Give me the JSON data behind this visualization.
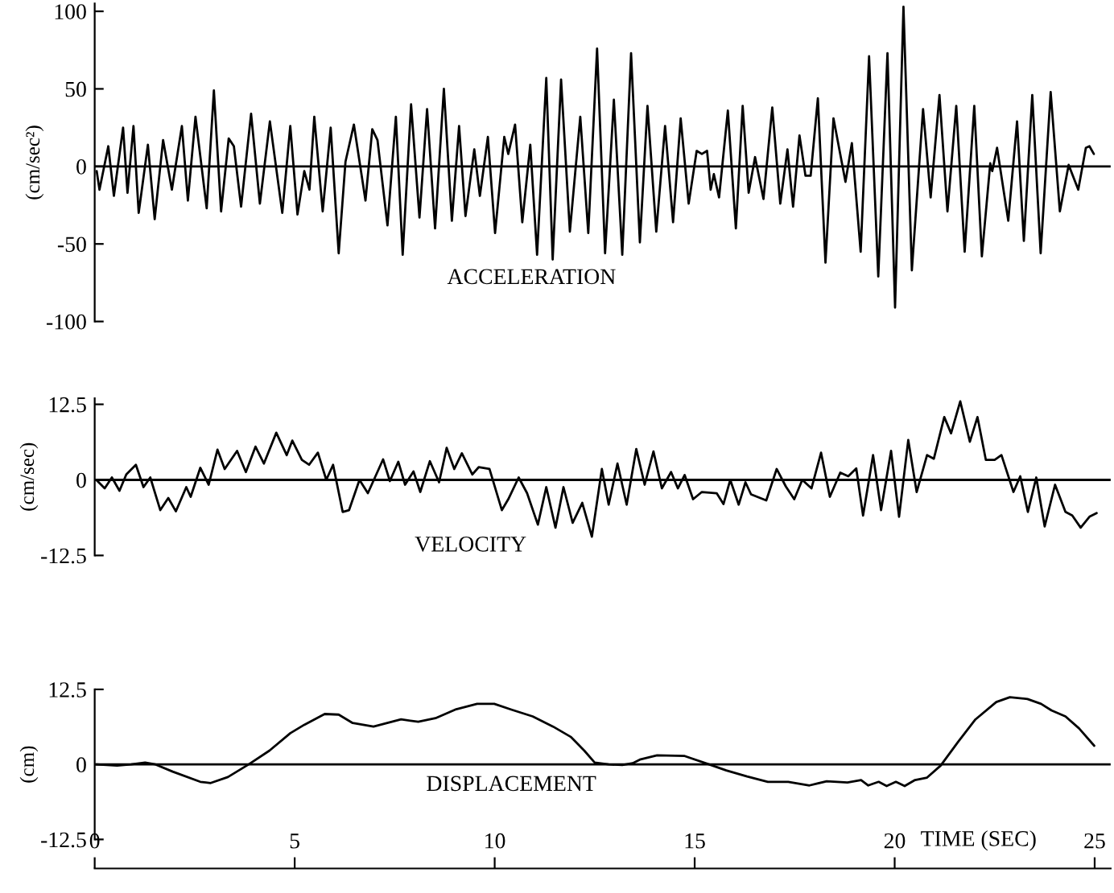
{
  "chart_data": [
    {
      "type": "line",
      "ylabel": "(cm/sec²)",
      "annotations": [
        "ACCELERATION"
      ],
      "xlim": [
        0,
        25.4
      ],
      "ylim": [
        -100,
        105
      ],
      "yticks": [
        100,
        50,
        0,
        -50,
        -100
      ],
      "tick_labels": "y",
      "grid": false,
      "ref_lines": [
        {
          "axis": "y",
          "value": 0,
          "color": "#000000"
        }
      ],
      "series": [
        {
          "color": "#000000",
          "x": [
            0.05,
            0.12,
            0.34,
            0.48,
            0.71,
            0.82,
            0.97,
            1.1,
            1.33,
            1.5,
            1.71,
            1.93,
            2.18,
            2.33,
            2.52,
            2.8,
            2.98,
            3.16,
            3.35,
            3.48,
            3.66,
            3.91,
            4.13,
            4.38,
            4.69,
            4.89,
            5.07,
            5.24,
            5.37,
            5.49,
            5.7,
            5.9,
            6.1,
            6.27,
            6.48,
            6.77,
            6.94,
            7.07,
            7.32,
            7.53,
            7.7,
            7.91,
            8.12,
            8.31,
            8.51,
            8.73,
            8.93,
            9.11,
            9.27,
            9.49,
            9.63,
            9.83,
            10.01,
            10.24,
            10.34,
            10.51,
            10.69,
            10.89,
            11.06,
            11.29,
            11.45,
            11.66,
            11.88,
            12.14,
            12.34,
            12.56,
            12.76,
            12.98,
            13.19,
            13.41,
            13.63,
            13.82,
            14.04,
            14.26,
            14.46,
            14.65,
            14.85,
            15.05,
            15.18,
            15.31,
            15.4,
            15.48,
            15.61,
            15.83,
            16.03,
            16.2,
            16.35,
            16.51,
            16.72,
            16.94,
            17.14,
            17.32,
            17.46,
            17.62,
            17.77,
            17.9,
            18.08,
            18.27,
            18.47,
            18.77,
            18.93,
            19.15,
            19.36,
            19.59,
            19.82,
            20.01,
            20.22,
            20.43,
            20.71,
            20.9,
            21.12,
            21.32,
            21.54,
            21.75,
            21.99,
            22.18,
            22.39,
            22.44,
            22.56,
            22.84,
            23.06,
            23.23,
            23.44,
            23.65,
            23.9,
            24.13,
            24.35,
            24.59,
            24.78,
            24.87,
            24.98
          ],
          "values": [
            -3,
            -15,
            13,
            -19,
            25,
            -17,
            26,
            -30,
            14,
            -34,
            17,
            -15,
            26,
            -22,
            32,
            -27,
            49,
            -29,
            18,
            13,
            -26,
            34,
            -24,
            29,
            -30,
            26,
            -31,
            -3,
            -15,
            32,
            -29,
            25,
            -56,
            3,
            27,
            -22,
            24,
            17,
            -38,
            32,
            -57,
            40,
            -33,
            37,
            -40,
            50,
            -35,
            26,
            -32,
            11,
            -19,
            19,
            -43,
            19,
            8,
            27,
            -36,
            14,
            -57,
            57,
            -60,
            56,
            -42,
            32,
            -43,
            76,
            -56,
            43,
            -57,
            73,
            -49,
            39,
            -42,
            26,
            -36,
            31,
            -24,
            10,
            8,
            10,
            -15,
            -5,
            -20,
            36,
            -40,
            39,
            -17,
            6,
            -21,
            38,
            -24,
            11,
            -26,
            20,
            -6,
            -6,
            44,
            -62,
            31,
            -10,
            15,
            -55,
            71,
            -71,
            73,
            -91,
            103,
            -67,
            37,
            -20,
            46,
            -29,
            39,
            -55,
            39,
            -58,
            2,
            -3,
            12,
            -35,
            29,
            -48,
            46,
            -56,
            48,
            -29,
            1,
            -15,
            12,
            13,
            8
          ]
        }
      ]
    },
    {
      "type": "line",
      "ylabel": "(cm/sec)",
      "annotations": [
        "VELOCITY"
      ],
      "xlim": [
        0,
        25.4
      ],
      "ylim": [
        -12.5,
        13.5
      ],
      "yticks": [
        12.5,
        0,
        -12.5
      ],
      "tick_labels": "y",
      "grid": false,
      "ref_lines": [
        {
          "axis": "y",
          "value": 0,
          "color": "#000000"
        }
      ],
      "series": [
        {
          "color": "#000000",
          "x": [
            0.04,
            0.25,
            0.43,
            0.62,
            0.79,
            1.03,
            1.22,
            1.39,
            1.64,
            1.84,
            2.03,
            2.29,
            2.4,
            2.64,
            2.85,
            3.07,
            3.25,
            3.56,
            3.78,
            4.02,
            4.23,
            4.54,
            4.8,
            4.94,
            5.18,
            5.36,
            5.58,
            5.79,
            5.96,
            6.2,
            6.36,
            6.62,
            6.83,
            7.21,
            7.38,
            7.59,
            7.76,
            7.97,
            8.14,
            8.38,
            8.61,
            8.8,
            8.99,
            9.18,
            9.44,
            9.6,
            9.87,
            10.18,
            10.34,
            10.6,
            10.81,
            11.08,
            11.29,
            11.52,
            11.72,
            11.95,
            12.19,
            12.43,
            12.68,
            12.85,
            13.07,
            13.3,
            13.54,
            13.75,
            13.97,
            14.18,
            14.41,
            14.58,
            14.75,
            14.96,
            15.18,
            15.55,
            15.72,
            15.89,
            16.1,
            16.27,
            16.41,
            16.79,
            17.05,
            17.28,
            17.49,
            17.69,
            17.92,
            18.16,
            18.38,
            18.64,
            18.84,
            19.04,
            19.21,
            19.46,
            19.66,
            19.91,
            20.11,
            20.34,
            20.55,
            20.81,
            20.98,
            21.24,
            21.41,
            21.64,
            21.88,
            22.07,
            22.28,
            22.5,
            22.67,
            22.97,
            23.14,
            23.33,
            23.54,
            23.75,
            24.01,
            24.27,
            24.44,
            24.65,
            24.87,
            25.05
          ],
          "values": [
            0,
            -1.4,
            0.4,
            -1.8,
            0.9,
            2.5,
            -1.2,
            0.4,
            -5,
            -3,
            -5.2,
            -1.2,
            -2.8,
            2,
            -0.8,
            5,
            1.8,
            4.8,
            1.3,
            5.5,
            2.7,
            7.8,
            4.1,
            6.5,
            3.3,
            2.5,
            4.5,
            0,
            2.5,
            -5.3,
            -5,
            0,
            -2.2,
            3.4,
            -0.2,
            3,
            -0.8,
            1.4,
            -2,
            3.1,
            -0.4,
            5.3,
            1.8,
            4.4,
            0.9,
            2.1,
            1.8,
            -5,
            -3.2,
            0.4,
            -2.2,
            -7.4,
            -1.2,
            -7.9,
            -1.2,
            -7.1,
            -3.8,
            -9.4,
            1.8,
            -4.1,
            2.7,
            -4.1,
            5.1,
            -0.8,
            4.7,
            -1.4,
            1.3,
            -1.4,
            0.8,
            -3.2,
            -2,
            -2.2,
            -4,
            0,
            -4.1,
            -0.4,
            -2.4,
            -3.4,
            1.8,
            -1.1,
            -3.2,
            0,
            -1.4,
            4.5,
            -2.8,
            1.2,
            0.6,
            1.9,
            -5.9,
            4.1,
            -5,
            4.8,
            -6.1,
            6.6,
            -2,
            4.1,
            3.5,
            10.4,
            7.7,
            13,
            6.3,
            10.4,
            3.3,
            3.3,
            4.1,
            -2,
            0.6,
            -5.3,
            0.4,
            -7.7,
            -0.8,
            -5.3,
            -5.9,
            -7.9,
            -6.1,
            -5.5
          ]
        }
      ]
    },
    {
      "type": "line",
      "ylabel": "(cm)",
      "xlabel": "TIME (SEC)",
      "annotations": [
        "DISPLACEMENT"
      ],
      "xlim": [
        0,
        25.4
      ],
      "xticks": [
        0,
        5,
        10,
        15,
        20,
        25
      ],
      "ylim": [
        -12.5,
        12.5
      ],
      "yticks": [
        12.5,
        0,
        -12.5
      ],
      "grid": false,
      "ref_lines": [
        {
          "axis": "y",
          "value": 0,
          "color": "#000000"
        }
      ],
      "series": [
        {
          "color": "#000000",
          "x": [
            0.04,
            0.56,
            0.91,
            1.26,
            1.52,
            1.95,
            2.64,
            2.9,
            3.33,
            3.85,
            4.37,
            4.89,
            5.24,
            5.75,
            6.1,
            6.45,
            6.97,
            7.66,
            8.09,
            8.52,
            9.04,
            9.56,
            9.99,
            10.43,
            10.95,
            11.46,
            11.9,
            12.24,
            12.5,
            12.85,
            13.19,
            13.45,
            13.63,
            14.06,
            14.75,
            15.36,
            15.79,
            16.31,
            16.83,
            17.34,
            17.87,
            18.3,
            18.82,
            19.16,
            19.34,
            19.6,
            19.8,
            20.03,
            20.25,
            20.51,
            20.81,
            21.15,
            21.59,
            22.02,
            22.54,
            22.88,
            23.32,
            23.66,
            23.92,
            24.27,
            24.61,
            24.99
          ],
          "values": [
            0,
            -0.2,
            0,
            0.3,
            0,
            -1.2,
            -2.9,
            -3.1,
            -2.1,
            0,
            2.3,
            5.2,
            6.6,
            8.4,
            8.3,
            6.9,
            6.3,
            7.5,
            7.1,
            7.7,
            9.2,
            10.1,
            10.1,
            9.1,
            8,
            6.3,
            4.6,
            2.3,
            0.3,
            0,
            -0.1,
            0.2,
            0.8,
            1.5,
            1.4,
            0,
            -1,
            -2,
            -2.9,
            -2.9,
            -3.5,
            -2.8,
            -3,
            -2.6,
            -3.5,
            -2.9,
            -3.6,
            -2.9,
            -3.6,
            -2.6,
            -2.2,
            -0.2,
            3.8,
            7.5,
            10.4,
            11.2,
            10.9,
            10.1,
            9,
            8,
            6,
            3.1
          ]
        }
      ]
    }
  ]
}
